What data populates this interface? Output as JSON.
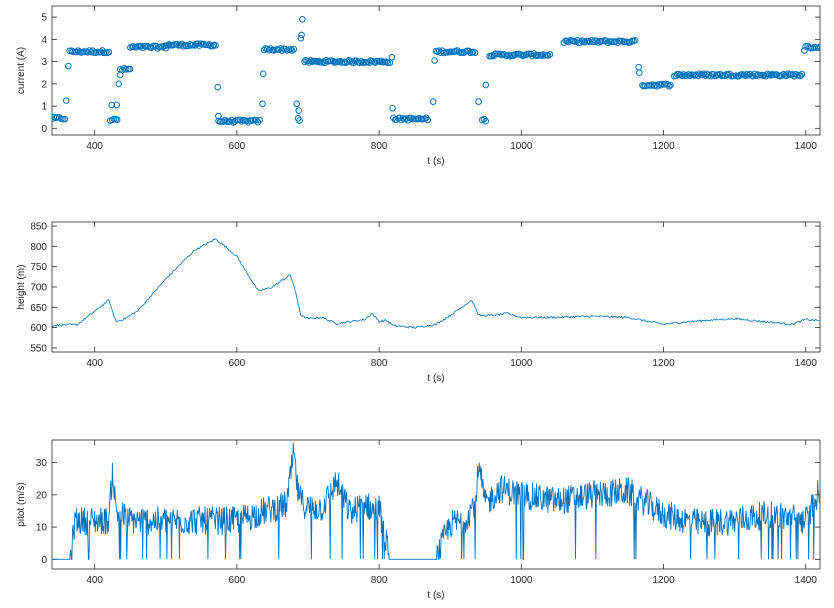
{
  "chart_data": [
    {
      "type": "scatter",
      "xlabel": "t (s)",
      "ylabel": "current (A)",
      "xlim": [
        340,
        1420
      ],
      "ylim": [
        -0.3,
        5.5
      ],
      "xticks": [
        400,
        600,
        800,
        1000,
        1200,
        1400
      ],
      "yticks": [
        0,
        1,
        2,
        3,
        4,
        5
      ],
      "marker_color": "#0072BD",
      "segments": [
        {
          "t": [
            340,
            358
          ],
          "v": 0.45
        },
        {
          "t": [
            365,
            420
          ],
          "v": 3.45
        },
        {
          "t": [
            422,
            432
          ],
          "v": 0.38
        },
        {
          "t": [
            436,
            450
          ],
          "v": 2.65
        },
        {
          "t": [
            450,
            500
          ],
          "v": 3.65
        },
        {
          "t": [
            500,
            570
          ],
          "v": 3.75
        },
        {
          "t": [
            574,
            632
          ],
          "v": 0.32
        },
        {
          "t": [
            638,
            680
          ],
          "v": 3.55
        },
        {
          "t": [
            695,
            815
          ],
          "v": 3.0
        },
        {
          "t": [
            820,
            868
          ],
          "v": 0.42
        },
        {
          "t": [
            880,
            935
          ],
          "v": 3.45
        },
        {
          "t": [
            945,
            950
          ],
          "v": 0.38
        },
        {
          "t": [
            955,
            1040
          ],
          "v": 3.3
        },
        {
          "t": [
            1060,
            1160
          ],
          "v": 3.9
        },
        {
          "t": [
            1170,
            1210
          ],
          "v": 1.95
        },
        {
          "t": [
            1215,
            1395
          ],
          "v": 2.4
        },
        {
          "t": [
            1400,
            1420
          ],
          "v": 3.65
        }
      ],
      "outliers": [
        {
          "t": 360,
          "v": 1.25
        },
        {
          "t": 363,
          "v": 2.8
        },
        {
          "t": 424,
          "v": 1.05
        },
        {
          "t": 431,
          "v": 1.05
        },
        {
          "t": 434,
          "v": 2.0
        },
        {
          "t": 436,
          "v": 2.4
        },
        {
          "t": 573,
          "v": 1.85
        },
        {
          "t": 574,
          "v": 0.55
        },
        {
          "t": 636,
          "v": 1.1
        },
        {
          "t": 637,
          "v": 2.45
        },
        {
          "t": 684,
          "v": 1.1
        },
        {
          "t": 686,
          "v": 0.45
        },
        {
          "t": 687,
          "v": 0.8
        },
        {
          "t": 688,
          "v": 0.35
        },
        {
          "t": 690,
          "v": 4.05
        },
        {
          "t": 691,
          "v": 4.2
        },
        {
          "t": 692,
          "v": 4.9
        },
        {
          "t": 818,
          "v": 3.2
        },
        {
          "t": 819,
          "v": 0.9
        },
        {
          "t": 876,
          "v": 1.2
        },
        {
          "t": 878,
          "v": 3.05
        },
        {
          "t": 940,
          "v": 1.2
        },
        {
          "t": 950,
          "v": 1.95
        },
        {
          "t": 1165,
          "v": 2.75
        },
        {
          "t": 1166,
          "v": 2.5
        },
        {
          "t": 1398,
          "v": 3.5
        }
      ]
    },
    {
      "type": "line",
      "xlabel": "t (s)",
      "ylabel": "height (m)",
      "xlim": [
        340,
        1420
      ],
      "ylim": [
        540,
        860
      ],
      "xticks": [
        400,
        600,
        800,
        1000,
        1200,
        1400
      ],
      "yticks": [
        550,
        600,
        650,
        700,
        750,
        800,
        850
      ],
      "line_color": "#0072BD",
      "x": [
        340,
        360,
        375,
        400,
        420,
        425,
        430,
        440,
        460,
        500,
        540,
        570,
        580,
        600,
        630,
        650,
        675,
        680,
        690,
        700,
        720,
        740,
        780,
        790,
        800,
        810,
        820,
        850,
        880,
        900,
        930,
        935,
        940,
        960,
        980,
        1000,
        1040,
        1100,
        1150,
        1200,
        1220,
        1260,
        1300,
        1340,
        1380,
        1400,
        1420
      ],
      "y": [
        605,
        607,
        607,
        640,
        668,
        640,
        615,
        620,
        640,
        720,
        790,
        818,
        805,
        775,
        690,
        700,
        730,
        705,
        630,
        622,
        625,
        610,
        620,
        635,
        615,
        618,
        605,
        600,
        608,
        630,
        668,
        650,
        630,
        630,
        635,
        625,
        625,
        628,
        625,
        608,
        612,
        618,
        622,
        615,
        608,
        620,
        617
      ]
    },
    {
      "type": "line",
      "xlabel": "t (s)",
      "ylabel": "pitot (m/s)",
      "xlim": [
        340,
        1420
      ],
      "ylim": [
        -3,
        37
      ],
      "xticks": [
        400,
        600,
        800,
        1000,
        1200,
        1400
      ],
      "yticks": [
        0,
        10,
        20,
        30
      ],
      "line_color": "#0072BD",
      "x": [
        340,
        365,
        368,
        372,
        420,
        425,
        430,
        450,
        500,
        560,
        600,
        640,
        670,
        680,
        685,
        690,
        700,
        720,
        740,
        760,
        780,
        790,
        800,
        815,
        880,
        900,
        920,
        935,
        940,
        950,
        970,
        1000,
        1050,
        1100,
        1150,
        1200,
        1250,
        1300,
        1350,
        1400,
        1420
      ],
      "y": [
        0,
        0,
        3,
        12,
        12,
        28,
        15,
        12,
        12,
        12,
        12,
        15,
        17,
        33,
        22,
        18,
        16,
        16,
        24,
        14,
        18,
        15,
        16,
        0,
        0,
        11,
        12,
        18,
        28,
        17,
        22,
        20,
        18,
        20,
        21,
        14,
        11,
        12,
        14,
        12,
        22
      ]
    }
  ]
}
